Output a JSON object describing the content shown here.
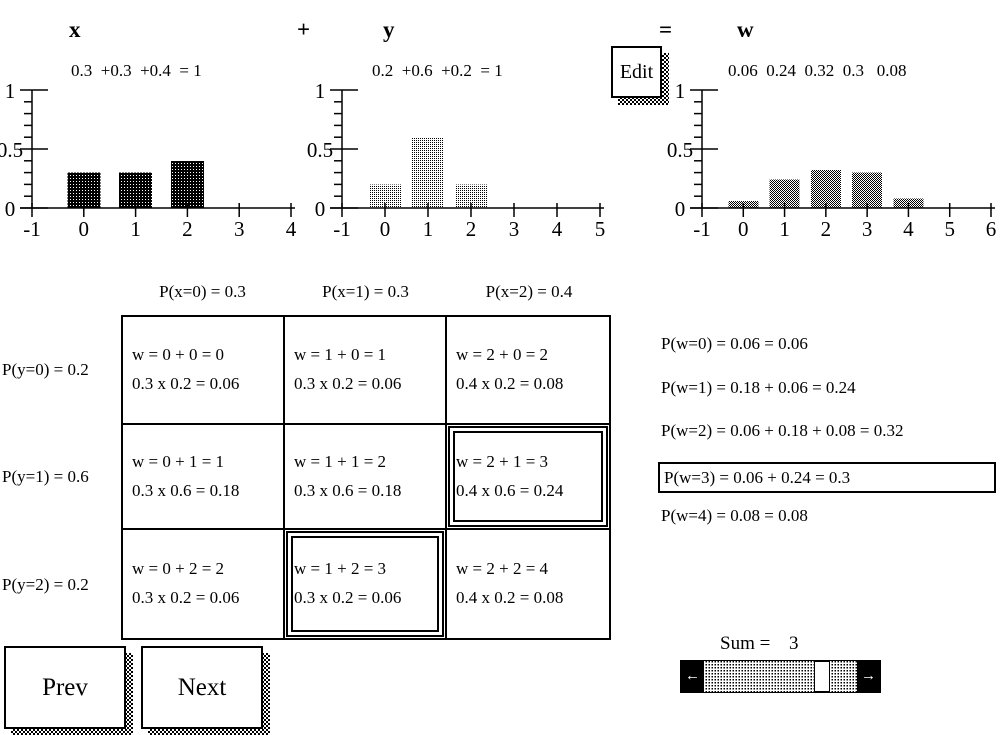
{
  "chart_data": [
    {
      "type": "bar",
      "title": "x",
      "x": [
        0,
        1,
        2
      ],
      "values": [
        0.3,
        0.3,
        0.4
      ],
      "labels_line": "0.3  +0.3  +0.4  = 1",
      "xlim": [
        -1,
        4
      ],
      "ylim": [
        0,
        1
      ],
      "xticks": [
        -1,
        0,
        1,
        2,
        3,
        4
      ],
      "ytick_labels": [
        "0",
        "0.5",
        "1"
      ],
      "bar_pattern": "dark-stipple"
    },
    {
      "type": "bar",
      "title": "y",
      "x": [
        0,
        1,
        2
      ],
      "values": [
        0.2,
        0.6,
        0.2
      ],
      "labels_line": "0.2  +0.6  +0.2  = 1",
      "xlim": [
        -1,
        5
      ],
      "ylim": [
        0,
        1
      ],
      "xticks": [
        -1,
        0,
        1,
        2,
        3,
        4,
        5
      ],
      "ytick_labels": [
        "0",
        "0.5",
        "1"
      ],
      "bar_pattern": "light-stipple"
    },
    {
      "type": "bar",
      "title": "w",
      "x": [
        0,
        1,
        2,
        3,
        4
      ],
      "values": [
        0.06,
        0.24,
        0.32,
        0.3,
        0.08
      ],
      "labels_line": "0.06  0.24  0.32  0.3   0.08",
      "xlim": [
        -1,
        6
      ],
      "ylim": [
        0,
        1
      ],
      "xticks": [
        -1,
        0,
        1,
        2,
        3,
        4,
        5,
        6
      ],
      "ytick_labels": [
        "0",
        "0.5",
        "1"
      ],
      "bar_pattern": "mid-stipple"
    }
  ],
  "operators": {
    "plus": "+",
    "equals": "="
  },
  "edit_button_label": "Edit",
  "table": {
    "col_headers": [
      "P(x=0) = 0.3",
      "P(x=1) = 0.3",
      "P(x=2) = 0.4"
    ],
    "row_headers": [
      "P(y=0) = 0.2",
      "P(y=1) = 0.6",
      "P(y=2) = 0.2"
    ],
    "cells": [
      [
        {
          "line1": "w = 0 + 0 = 0",
          "line2": "0.3 x 0.2 = 0.06",
          "highlighted": false
        },
        {
          "line1": "w = 1 + 0 = 1",
          "line2": "0.3 x 0.2 = 0.06",
          "highlighted": false
        },
        {
          "line1": "w = 2 + 0 = 2",
          "line2": "0.4 x 0.2 = 0.08",
          "highlighted": false
        }
      ],
      [
        {
          "line1": "w = 0 + 1 = 1",
          "line2": "0.3 x 0.6 = 0.18",
          "highlighted": false
        },
        {
          "line1": "w = 1 + 1 = 2",
          "line2": "0.3 x 0.6 = 0.18",
          "highlighted": false
        },
        {
          "line1": "w = 2 + 1 = 3",
          "line2": "0.4 x 0.6 = 0.24",
          "highlighted": true
        }
      ],
      [
        {
          "line1": "w = 0 + 2 = 2",
          "line2": "0.3 x 0.2 = 0.06",
          "highlighted": false
        },
        {
          "line1": "w = 1 + 2 = 3",
          "line2": "0.3 x 0.2 = 0.06",
          "highlighted": true
        },
        {
          "line1": "w = 2 + 2 = 4",
          "line2": "0.4 x 0.2 = 0.08",
          "highlighted": false
        }
      ]
    ]
  },
  "w_list": {
    "items": [
      {
        "text": "P(w=0) = 0.06 = 0.06",
        "boxed": false
      },
      {
        "text": "P(w=1) = 0.18 + 0.06 = 0.24",
        "boxed": false
      },
      {
        "text": "P(w=2) = 0.06 + 0.18 + 0.08 = 0.32",
        "boxed": false
      },
      {
        "text": "P(w=3) = 0.06 + 0.24 = 0.3",
        "boxed": true
      },
      {
        "text": "P(w=4) = 0.08 = 0.08",
        "boxed": false
      }
    ]
  },
  "nav": {
    "prev_label": "Prev",
    "next_label": "Next"
  },
  "sum": {
    "label": "Sum =",
    "value": "3"
  },
  "scrollbar": {
    "left_arrow": "←",
    "right_arrow": "→"
  }
}
